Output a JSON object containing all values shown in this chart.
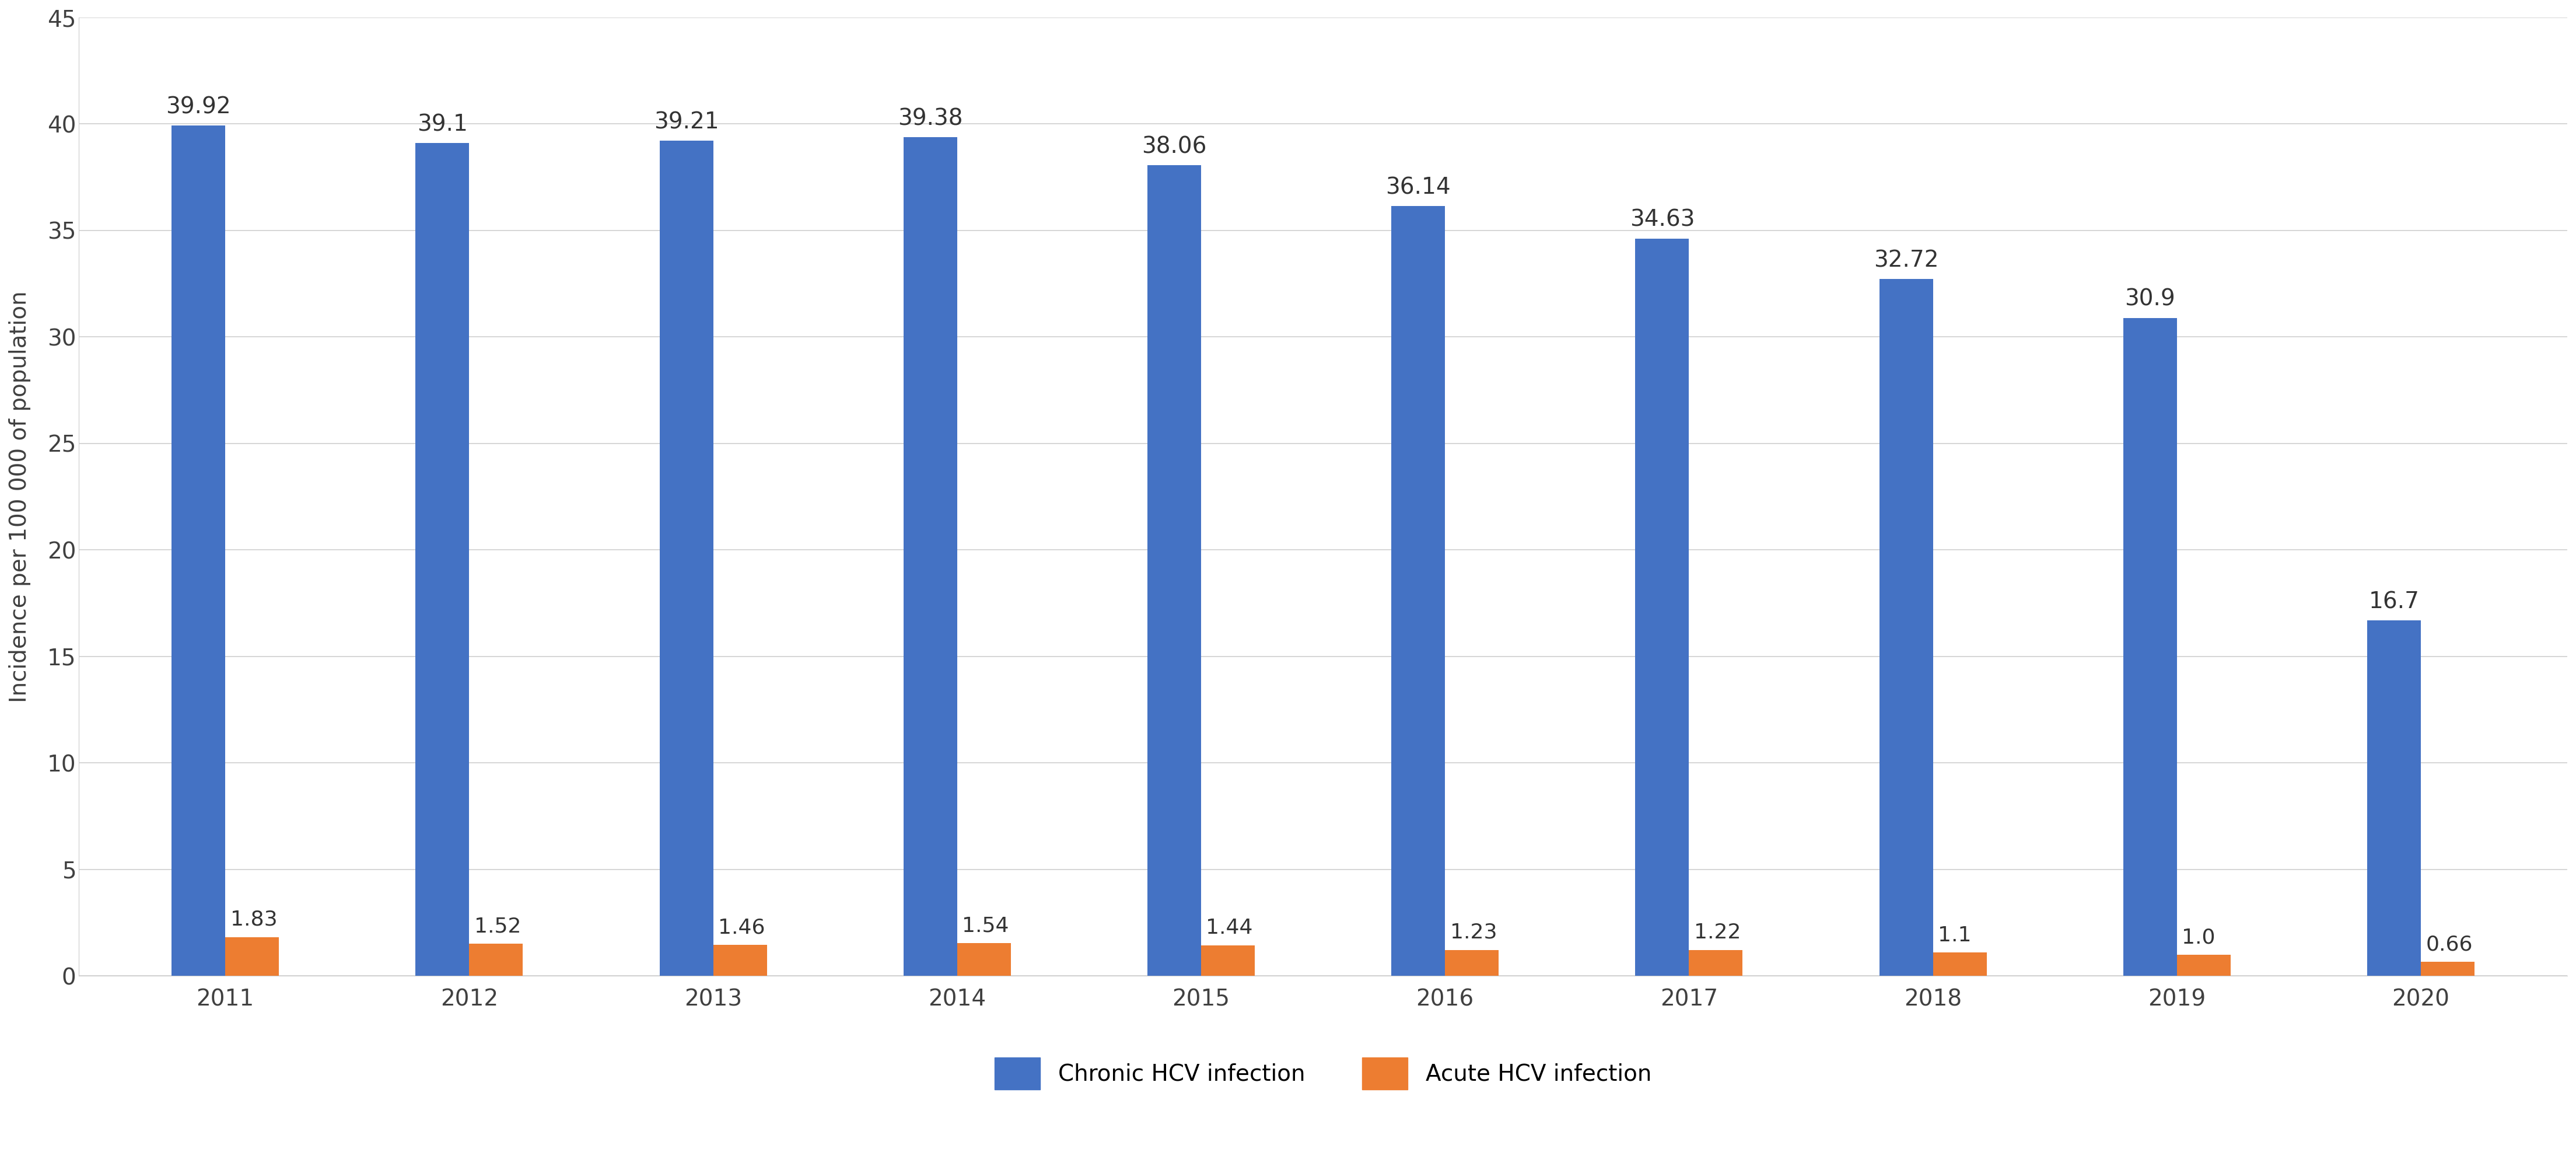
{
  "years": [
    "2011",
    "2012",
    "2013",
    "2014",
    "2015",
    "2016",
    "2017",
    "2018",
    "2019",
    "2020"
  ],
  "chronic_values": [
    39.92,
    39.1,
    39.21,
    39.38,
    38.06,
    36.14,
    34.63,
    32.72,
    30.9,
    16.7
  ],
  "acute_values": [
    1.83,
    1.52,
    1.46,
    1.54,
    1.44,
    1.23,
    1.22,
    1.1,
    1.0,
    0.66
  ],
  "chronic_color": "#4472C4",
  "acute_color": "#ED7D31",
  "ylabel": "Incidence per 100 000 of population",
  "ylim": [
    0,
    45
  ],
  "yticks": [
    0,
    5,
    10,
    15,
    20,
    25,
    30,
    35,
    40,
    45
  ],
  "bar_width": 0.22,
  "legend_chronic": "Chronic HCV infection",
  "legend_acute": "Acute HCV infection",
  "background_color": "#FFFFFF",
  "grid_color": "#D0D0D0",
  "label_fontsize": 28,
  "tick_fontsize": 28,
  "chronic_annotation_fontsize": 28,
  "acute_annotation_fontsize": 26,
  "legend_fontsize": 28
}
